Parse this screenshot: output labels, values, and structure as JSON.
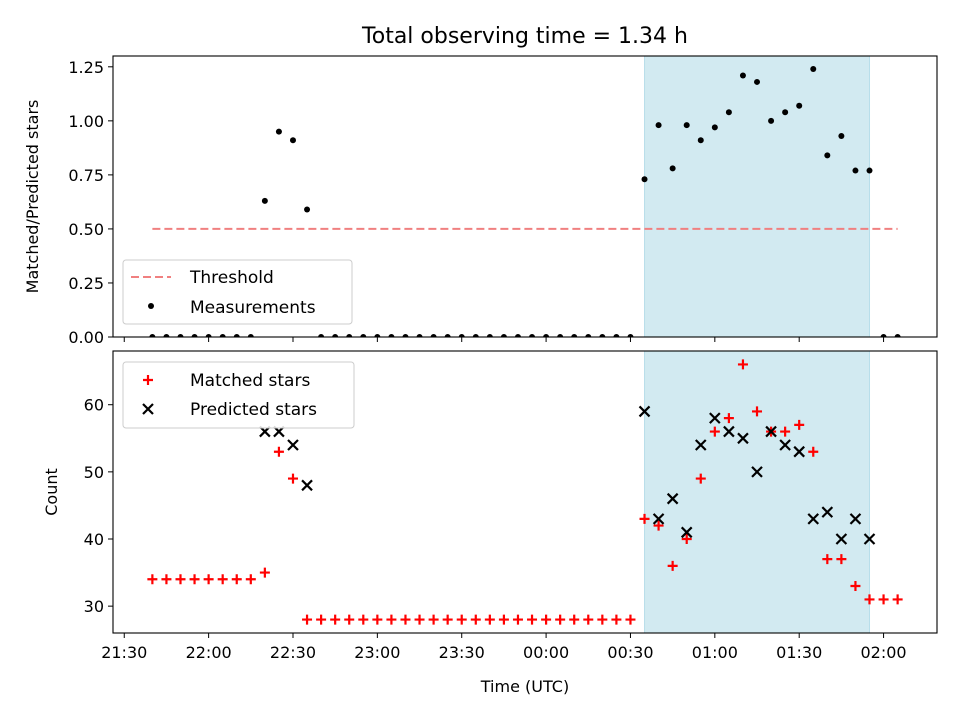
{
  "figure": {
    "title": "Total observing time = 1.34 h",
    "xlabel": "Time (UTC)"
  },
  "colors": {
    "threshold": "#f08080",
    "measurement": "#000000",
    "matched": "#ff0000",
    "predicted": "#000000",
    "span": "#add8e6"
  },
  "chart_data": [
    {
      "type": "scatter",
      "panel": "top",
      "ylabel": "Matched/Predicted stars",
      "ylim": [
        0,
        1.3
      ],
      "xlim": [
        "21:26",
        "02:19"
      ],
      "y_ticks": [
        0,
        0.25,
        0.5,
        0.75,
        1.0,
        1.25
      ],
      "y_tick_labels": [
        "0.00",
        "0.25",
        "0.50",
        "0.75",
        "1.00",
        "1.25"
      ],
      "observing_span": [
        "00:35",
        "01:55"
      ],
      "legend_position": "lower-left",
      "threshold": {
        "name": "Threshold",
        "y": 0.5,
        "x_range": [
          "21:40",
          "02:05"
        ]
      },
      "measurements": {
        "name": "Measurements",
        "x": [
          "21:40",
          "21:45",
          "21:50",
          "21:55",
          "22:00",
          "22:05",
          "22:10",
          "22:15",
          "22:20",
          "22:25",
          "22:30",
          "22:35",
          "22:40",
          "22:45",
          "22:50",
          "22:55",
          "23:00",
          "23:05",
          "23:10",
          "23:15",
          "23:20",
          "23:25",
          "23:30",
          "23:35",
          "23:40",
          "23:45",
          "23:50",
          "23:55",
          "00:00",
          "00:05",
          "00:10",
          "00:15",
          "00:20",
          "00:25",
          "00:30",
          "00:35",
          "00:40",
          "00:45",
          "00:50",
          "00:55",
          "01:00",
          "01:05",
          "01:10",
          "01:15",
          "01:20",
          "01:25",
          "01:30",
          "01:35",
          "01:40",
          "01:45",
          "01:50",
          "01:55",
          "02:00",
          "02:05"
        ],
        "y": [
          0,
          0,
          0,
          0,
          0,
          0,
          0,
          0,
          0.63,
          0.95,
          0.91,
          0.59,
          0,
          0,
          0,
          0,
          0,
          0,
          0,
          0,
          0,
          0,
          0,
          0,
          0,
          0,
          0,
          0,
          0,
          0,
          0,
          0,
          0,
          0,
          0,
          0.73,
          0.98,
          0.78,
          0.98,
          0.91,
          0.97,
          1.04,
          1.21,
          1.18,
          1.0,
          1.04,
          1.07,
          1.24,
          0.84,
          0.93,
          0.77,
          0.77,
          0,
          0
        ]
      }
    },
    {
      "type": "scatter",
      "panel": "bottom",
      "ylabel": "Count",
      "ylim": [
        26,
        68
      ],
      "xlim": [
        "21:26",
        "02:19"
      ],
      "y_ticks": [
        30,
        40,
        50,
        60
      ],
      "y_tick_labels": [
        "30",
        "40",
        "50",
        "60"
      ],
      "x_ticks": [
        "21:30",
        "22:00",
        "22:30",
        "23:00",
        "23:30",
        "00:00",
        "00:30",
        "01:00",
        "01:30",
        "02:00"
      ],
      "x_tick_labels": [
        "21:30",
        "22:00",
        "22:30",
        "23:00",
        "23:30",
        "00:00",
        "00:30",
        "01:00",
        "01:30",
        "02:00"
      ],
      "observing_span": [
        "00:35",
        "01:55"
      ],
      "legend_position": "upper-left",
      "series": [
        {
          "name": "Matched stars",
          "marker": "plus",
          "x": [
            "21:40",
            "21:45",
            "21:50",
            "21:55",
            "22:00",
            "22:05",
            "22:10",
            "22:15",
            "22:20",
            "22:25",
            "22:30",
            "22:35",
            "22:40",
            "22:45",
            "22:50",
            "22:55",
            "23:00",
            "23:05",
            "23:10",
            "23:15",
            "23:20",
            "23:25",
            "23:30",
            "23:35",
            "23:40",
            "23:45",
            "23:50",
            "23:55",
            "00:00",
            "00:05",
            "00:10",
            "00:15",
            "00:20",
            "00:25",
            "00:30",
            "00:35",
            "00:40",
            "00:45",
            "00:50",
            "00:55",
            "01:00",
            "01:05",
            "01:10",
            "01:15",
            "01:20",
            "01:25",
            "01:30",
            "01:35",
            "01:40",
            "01:45",
            "01:50",
            "01:55",
            "02:00",
            "02:05"
          ],
          "y": [
            34,
            34,
            34,
            34,
            34,
            34,
            34,
            34,
            35,
            53,
            49,
            28,
            28,
            28,
            28,
            28,
            28,
            28,
            28,
            28,
            28,
            28,
            28,
            28,
            28,
            28,
            28,
            28,
            28,
            28,
            28,
            28,
            28,
            28,
            28,
            43,
            42,
            36,
            40,
            49,
            56,
            58,
            66,
            59,
            56,
            56,
            57,
            53,
            37,
            37,
            33,
            31,
            31,
            31
          ]
        },
        {
          "name": "Predicted stars",
          "marker": "x",
          "x": [
            "22:20",
            "22:25",
            "22:30",
            "22:35",
            "00:35",
            "00:40",
            "00:45",
            "00:50",
            "00:55",
            "01:00",
            "01:05",
            "01:10",
            "01:15",
            "01:20",
            "01:25",
            "01:30",
            "01:35",
            "01:40",
            "01:45",
            "01:50",
            "01:55"
          ],
          "y": [
            56,
            56,
            54,
            48,
            59,
            43,
            46,
            41,
            54,
            58,
            56,
            55,
            50,
            56,
            54,
            53,
            43,
            44,
            40,
            43,
            40
          ]
        }
      ]
    }
  ]
}
